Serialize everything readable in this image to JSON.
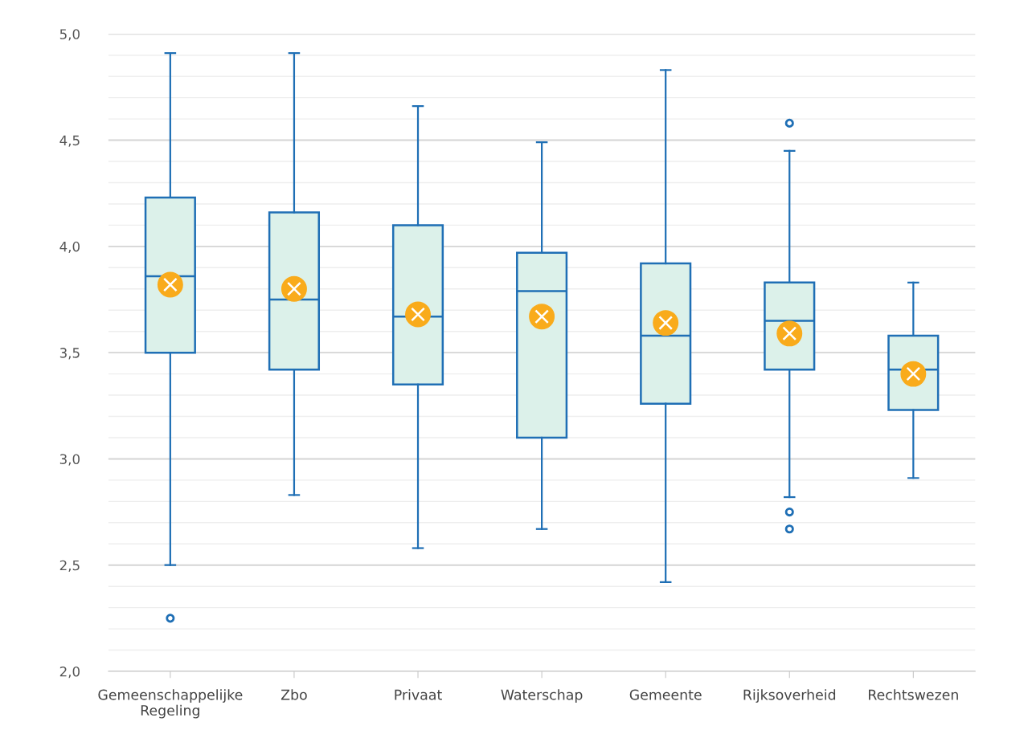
{
  "chart_data": {
    "type": "box",
    "categories": [
      "Gemeenschappelijke\nRegeling",
      "Zbo",
      "Privaat",
      "Waterschap",
      "Gemeente",
      "Rijksoverheid",
      "Rechtswezen"
    ],
    "series": [
      {
        "color": "#1f6fb5",
        "boxes": [
          {
            "low": 2.5,
            "q1": 3.5,
            "median": 3.86,
            "q3": 4.23,
            "high": 4.91,
            "mean": 3.82,
            "outliers": [
              2.25
            ]
          },
          {
            "low": 2.83,
            "q1": 3.42,
            "median": 3.75,
            "q3": 4.16,
            "high": 4.91,
            "mean": 3.8
          },
          {
            "low": 2.58,
            "q1": 3.35,
            "median": 3.67,
            "q3": 4.1,
            "high": 4.66,
            "mean": 3.68
          },
          {
            "low": 2.67,
            "q1": 3.1,
            "median": 3.79,
            "q3": 3.97,
            "high": 4.49,
            "mean": 3.67
          },
          {
            "low": 2.42,
            "q1": 3.26,
            "median": 3.58,
            "q3": 3.92,
            "high": 4.83,
            "mean": 3.64
          },
          {
            "low": 2.82,
            "q1": 3.42,
            "median": 3.65,
            "q3": 3.83,
            "high": 4.45,
            "mean": 3.59,
            "outliers": [
              4.58,
              2.75,
              2.67
            ]
          },
          {
            "low": 2.91,
            "q1": 3.23,
            "median": 3.42,
            "q3": 3.58,
            "high": 3.83,
            "mean": 3.4
          }
        ]
      }
    ],
    "ylim": [
      2.0,
      5.0
    ],
    "yticks": [
      {
        "value": 2.0,
        "label": "2,0"
      },
      {
        "value": 2.1,
        "label": null
      },
      {
        "value": 2.2,
        "label": null
      },
      {
        "value": 2.3,
        "label": null
      },
      {
        "value": 2.4,
        "label": null
      },
      {
        "value": 2.5,
        "label": "2,5"
      },
      {
        "value": 2.6,
        "label": null
      },
      {
        "value": 2.7,
        "label": null
      },
      {
        "value": 2.8,
        "label": null
      },
      {
        "value": 2.9,
        "label": null
      },
      {
        "value": 3.0,
        "label": "3,0"
      },
      {
        "value": 3.1,
        "label": null
      },
      {
        "value": 3.2,
        "label": null
      },
      {
        "value": 3.3,
        "label": null
      },
      {
        "value": 3.4,
        "label": null
      },
      {
        "value": 3.5,
        "label": "3,5"
      },
      {
        "value": 3.6,
        "label": null
      },
      {
        "value": 3.7,
        "label": null
      },
      {
        "value": 3.8,
        "label": null
      },
      {
        "value": 3.9,
        "label": null
      },
      {
        "value": 4.0,
        "label": "4,0"
      },
      {
        "value": 4.1,
        "label": null
      },
      {
        "value": 4.2,
        "label": null
      },
      {
        "value": 4.3,
        "label": null
      },
      {
        "value": 4.4,
        "label": null
      },
      {
        "value": 4.5,
        "label": "4,5"
      },
      {
        "value": 4.6,
        "label": null
      },
      {
        "value": 4.7,
        "label": null
      },
      {
        "value": 4.8,
        "label": null
      },
      {
        "value": 4.9,
        "label": null
      },
      {
        "value": 5.0,
        "label": "5,0"
      }
    ],
    "grid": "y"
  }
}
